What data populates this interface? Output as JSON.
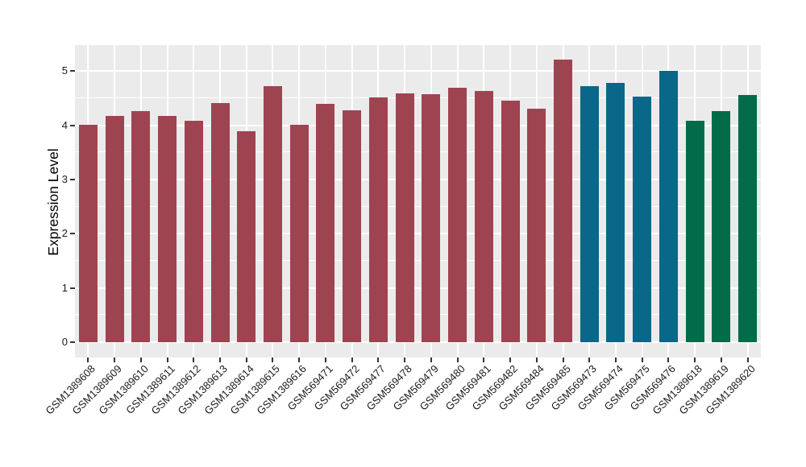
{
  "figure": {
    "background": "#FFFFFF",
    "panel_background": "#EBEBEB",
    "grid_color": "#FFFFFF",
    "tick_color": "#333333",
    "text_color": "#1A1A1A"
  },
  "chart_data": {
    "type": "bar",
    "title": "",
    "xlabel": "",
    "ylabel": "Expression Level",
    "ylim": [
      -0.28,
      5.48
    ],
    "yticks": [
      0,
      1,
      2,
      3,
      4,
      5
    ],
    "yticks_minor": [
      0.5,
      1.5,
      2.5,
      3.5,
      4.5
    ],
    "grid": "on",
    "legend_position": "none",
    "categories": [
      "GSM1389608",
      "GSM1389609",
      "GSM1389610",
      "GSM1389611",
      "GSM1389612",
      "GSM1389613",
      "GSM1389614",
      "GSM1389615",
      "GSM1389616",
      "GSM569471",
      "GSM569472",
      "GSM569477",
      "GSM569478",
      "GSM569479",
      "GSM569480",
      "GSM569481",
      "GSM569482",
      "GSM569484",
      "GSM569485",
      "GSM569473",
      "GSM569474",
      "GSM569475",
      "GSM569476",
      "GSM1389618",
      "GSM1389619",
      "GSM1389620"
    ],
    "values": [
      4.01,
      4.18,
      4.27,
      4.17,
      4.08,
      4.41,
      3.89,
      4.72,
      4.01,
      4.39,
      4.28,
      4.52,
      4.59,
      4.58,
      4.69,
      4.63,
      4.45,
      4.31,
      5.21,
      4.72,
      4.78,
      4.53,
      5.0,
      4.08,
      4.26,
      4.56
    ],
    "groups": [
      "red",
      "red",
      "red",
      "red",
      "red",
      "red",
      "red",
      "red",
      "red",
      "red",
      "red",
      "red",
      "red",
      "red",
      "red",
      "red",
      "red",
      "red",
      "red",
      "teal",
      "teal",
      "teal",
      "teal",
      "green",
      "green",
      "green"
    ],
    "colors": {
      "red": "#9E4451",
      "teal": "#0A6789",
      "green": "#016B4A"
    }
  }
}
